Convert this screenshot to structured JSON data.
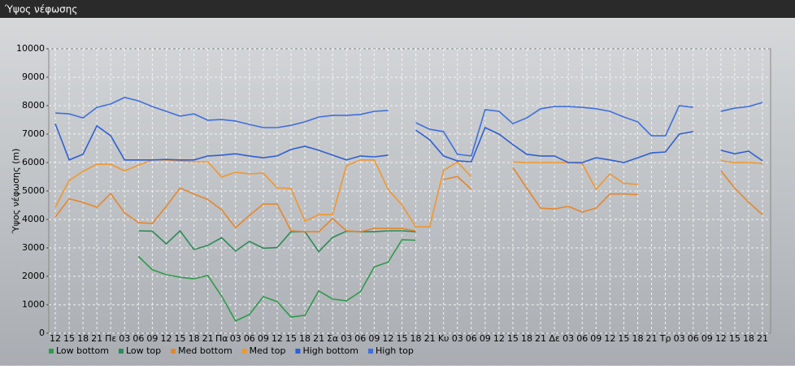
{
  "chart_data": {
    "type": "line",
    "title": "Ύψος νέφωσης",
    "y_label": "Ύψος νέφωσης (m)",
    "categories": [
      "12",
      "15",
      "18",
      "21",
      "Πε",
      "03",
      "06",
      "09",
      "12",
      "15",
      "18",
      "21",
      "Πα",
      "03",
      "06",
      "09",
      "12",
      "15",
      "18",
      "21",
      "Σα",
      "03",
      "06",
      "09",
      "12",
      "15",
      "18",
      "21",
      "Κυ",
      "03",
      "06",
      "09",
      "12",
      "15",
      "18",
      "21",
      "Δε",
      "03",
      "06",
      "09",
      "12",
      "15",
      "18",
      "21",
      "Τρ",
      "03",
      "06",
      "09",
      "12",
      "15",
      "18",
      "21"
    ],
    "ylim": [
      0,
      10000
    ],
    "yticks": [
      0,
      1000,
      2000,
      3000,
      4000,
      5000,
      6000,
      7000,
      8000,
      9000,
      10000
    ],
    "grid": true,
    "series": [
      {
        "name": "Low bottom",
        "color": "#2f9a4c",
        "values": [
          null,
          null,
          null,
          null,
          null,
          null,
          2700,
          2230,
          2060,
          1970,
          1910,
          2030,
          1300,
          430,
          660,
          1290,
          1110,
          570,
          630,
          1490,
          1200,
          1140,
          1460,
          2330,
          2500,
          3290,
          3270,
          null,
          null,
          null,
          null,
          null,
          null,
          null,
          null,
          null,
          null,
          null,
          null,
          null,
          null,
          null,
          null,
          null,
          null,
          null,
          null,
          null,
          null,
          null,
          null,
          null
        ]
      },
      {
        "name": "Low top",
        "color": "#2e8a58",
        "values": [
          null,
          null,
          null,
          null,
          null,
          null,
          3600,
          3590,
          3140,
          3600,
          2940,
          3090,
          3360,
          2890,
          3230,
          2990,
          3010,
          3570,
          3570,
          2870,
          3370,
          3590,
          3570,
          3570,
          3600,
          3600,
          3570,
          null,
          null,
          null,
          null,
          null,
          null,
          null,
          null,
          null,
          null,
          null,
          null,
          null,
          null,
          null,
          null,
          null,
          null,
          null,
          null,
          null,
          null,
          null,
          null,
          null
        ]
      },
      {
        "name": "Med bottom",
        "color": "#e5862c",
        "values": [
          4090,
          4730,
          4600,
          4430,
          4910,
          4230,
          3890,
          3860,
          4460,
          5110,
          4890,
          4700,
          4340,
          3710,
          4140,
          4540,
          4540,
          3600,
          3570,
          3570,
          4030,
          3600,
          3570,
          3690,
          3690,
          3680,
          3600,
          null,
          5400,
          5510,
          5060,
          null,
          null,
          5830,
          5100,
          4400,
          4370,
          4460,
          4260,
          4400,
          4890,
          4900,
          4870,
          null,
          null,
          null,
          null,
          null,
          5710,
          5100,
          4610,
          4170
        ]
      },
      {
        "name": "Med top",
        "color": "#f0962e",
        "values": [
          4430,
          5370,
          5690,
          5940,
          5940,
          5710,
          5910,
          6090,
          6090,
          6060,
          6030,
          6030,
          5490,
          5660,
          5600,
          5630,
          5110,
          5090,
          3940,
          4170,
          4170,
          5890,
          6090,
          6090,
          5060,
          4510,
          3740,
          3740,
          5720,
          6020,
          5500,
          null,
          null,
          6020,
          6000,
          6000,
          6000,
          6000,
          5970,
          5060,
          5600,
          5270,
          5230,
          null,
          null,
          null,
          null,
          null,
          6060,
          6000,
          6000,
          5970
        ]
      },
      {
        "name": "High bottom",
        "color": "#2f5fd0",
        "values": [
          7370,
          6090,
          6290,
          7290,
          6940,
          6090,
          6090,
          6090,
          6110,
          6090,
          6090,
          6230,
          6260,
          6310,
          6230,
          6170,
          6230,
          6460,
          6570,
          6430,
          6260,
          6090,
          6230,
          6200,
          6260,
          null,
          7140,
          6800,
          6230,
          6060,
          6030,
          7230,
          7000,
          6630,
          6290,
          6230,
          6230,
          6000,
          6000,
          6170,
          6090,
          6000,
          6170,
          6340,
          6370,
          7000,
          7090,
          null,
          6430,
          6310,
          6400,
          6060
        ]
      },
      {
        "name": "High top",
        "color": "#3f6fdc",
        "values": [
          7740,
          7710,
          7570,
          7940,
          8060,
          8290,
          8170,
          7970,
          7800,
          7630,
          7710,
          7490,
          7510,
          7460,
          7340,
          7230,
          7230,
          7310,
          7430,
          7600,
          7660,
          7660,
          7690,
          7800,
          7830,
          null,
          7400,
          7170,
          7090,
          6290,
          6230,
          7860,
          7800,
          7370,
          7570,
          7890,
          7970,
          7970,
          7940,
          7890,
          7800,
          7600,
          7430,
          6940,
          6940,
          8000,
          7940,
          null,
          7800,
          7910,
          7970,
          8110
        ]
      }
    ]
  }
}
